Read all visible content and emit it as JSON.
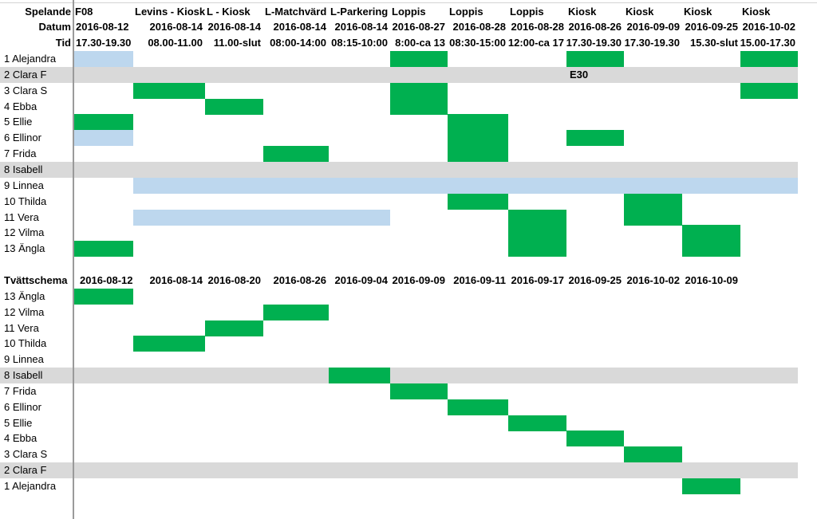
{
  "colors": {
    "green": "#00b050",
    "blue": "#bdd7ee",
    "gray": "#d9d9d9"
  },
  "top": {
    "header_labels": {
      "activity": "Spelande",
      "date": "Datum",
      "time": "Tid"
    },
    "columns": [
      {
        "activity": "F08",
        "date": "2016-08-12",
        "time": "17.30-19.30"
      },
      {
        "activity": "Levins - Kiosk",
        "date": "2016-08-14",
        "time": "08.00-11.00"
      },
      {
        "activity": "L - Kiosk",
        "date": "2016-08-14",
        "time": "11.00-slut"
      },
      {
        "activity": "L-Matchvärd",
        "date": "2016-08-14",
        "time": "08:00-14:00"
      },
      {
        "activity": "L-Parkering",
        "date": "2016-08-14",
        "time": "08:15-10:00"
      },
      {
        "activity": "Loppis",
        "date": "2016-08-27",
        "time": "8:00-ca 13"
      },
      {
        "activity": "Loppis",
        "date": "2016-08-28",
        "time": "08:30-15:00"
      },
      {
        "activity": "Loppis",
        "date": "2016-08-28",
        "time": "12:00-ca 17"
      },
      {
        "activity": "Kiosk",
        "date": "2016-08-26",
        "time": "17.30-19.30"
      },
      {
        "activity": "Kiosk",
        "date": "2016-09-09",
        "time": "17.30-19.30"
      },
      {
        "activity": "Kiosk",
        "date": "2016-09-25",
        "time": "15.30-slut"
      },
      {
        "activity": "Kiosk",
        "date": "2016-10-02",
        "time": "15.00-17.30"
      }
    ],
    "rows": [
      {
        "label": "1 Alejandra",
        "gray": false,
        "fills": [
          "b",
          "",
          "",
          "",
          "",
          "g",
          "",
          "",
          "g",
          "",
          "",
          "g"
        ]
      },
      {
        "label": "2 Clara F",
        "gray": true,
        "fills": [
          "",
          "",
          "",
          "",
          "",
          "",
          "",
          "",
          "",
          "",
          "",
          ""
        ],
        "note_col": 8,
        "note": "E30"
      },
      {
        "label": "3 Clara S",
        "gray": false,
        "fills": [
          "",
          "g",
          "",
          "",
          "",
          "g",
          "",
          "",
          "",
          "",
          "",
          "g"
        ]
      },
      {
        "label": "4 Ebba",
        "gray": false,
        "fills": [
          "",
          "",
          "g",
          "",
          "",
          "g",
          "",
          "",
          "",
          "",
          "",
          ""
        ]
      },
      {
        "label": "5 Ellie",
        "gray": false,
        "fills": [
          "g",
          "",
          "",
          "",
          "",
          "",
          "g",
          "",
          "",
          "",
          "",
          ""
        ]
      },
      {
        "label": "6 Ellinor",
        "gray": false,
        "fills": [
          "b",
          "",
          "",
          "",
          "",
          "",
          "g",
          "",
          "g",
          "",
          "",
          ""
        ]
      },
      {
        "label": "7 Frida",
        "gray": false,
        "fills": [
          "",
          "",
          "",
          "g",
          "",
          "",
          "g",
          "",
          "",
          "",
          "",
          ""
        ]
      },
      {
        "label": "8 Isabell",
        "gray": true,
        "fills": [
          "",
          "",
          "",
          "",
          "",
          "",
          "",
          "",
          "",
          "",
          "",
          ""
        ]
      },
      {
        "label": "9 Linnea",
        "gray": false,
        "fills": [
          "",
          "b",
          "b",
          "b",
          "b",
          "b",
          "b",
          "b",
          "b",
          "b",
          "b",
          "b"
        ]
      },
      {
        "label": "10 Thilda",
        "gray": false,
        "fills": [
          "",
          "",
          "",
          "",
          "",
          "",
          "g",
          "",
          "",
          "g",
          "",
          ""
        ]
      },
      {
        "label": "11 Vera",
        "gray": false,
        "fills": [
          "",
          "b",
          "b",
          "b",
          "b",
          "",
          "",
          "g",
          "",
          "g",
          "",
          ""
        ]
      },
      {
        "label": "12 Vilma",
        "gray": false,
        "fills": [
          "",
          "",
          "",
          "",
          "",
          "",
          "",
          "g",
          "",
          "",
          "g",
          ""
        ]
      },
      {
        "label": "13 Ängla",
        "gray": false,
        "fills": [
          "g",
          "",
          "",
          "",
          "",
          "",
          "",
          "g",
          "",
          "",
          "g",
          ""
        ]
      }
    ]
  },
  "bottom": {
    "title": "Tvättschema",
    "dates": [
      "2016-08-12",
      "2016-08-14",
      "2016-08-20",
      "2016-08-26",
      "2016-09-04",
      "2016-09-09",
      "2016-09-11",
      "2016-09-17",
      "2016-09-25",
      "2016-10-02",
      "2016-10-09"
    ],
    "rows": [
      {
        "label": "13 Ängla",
        "gray": false,
        "fill_col": 0
      },
      {
        "label": "12 Vilma",
        "gray": false,
        "fill_col": 3
      },
      {
        "label": "11 Vera",
        "gray": false,
        "fill_col": 2
      },
      {
        "label": "10 Thilda",
        "gray": false,
        "fill_col": 1
      },
      {
        "label": "9 Linnea",
        "gray": false,
        "fill_col": -1
      },
      {
        "label": "8 Isabell",
        "gray": true,
        "fill_col": 4
      },
      {
        "label": "7 Frida",
        "gray": false,
        "fill_col": 5
      },
      {
        "label": "6 Ellinor",
        "gray": false,
        "fill_col": 6
      },
      {
        "label": "5 Ellie",
        "gray": false,
        "fill_col": 7
      },
      {
        "label": "4 Ebba",
        "gray": false,
        "fill_col": 8
      },
      {
        "label": "3 Clara S",
        "gray": false,
        "fill_col": 9
      },
      {
        "label": "2 Clara F",
        "gray": true,
        "fill_col": -1
      },
      {
        "label": "1 Alejandra",
        "gray": false,
        "fill_col": 10
      }
    ]
  }
}
